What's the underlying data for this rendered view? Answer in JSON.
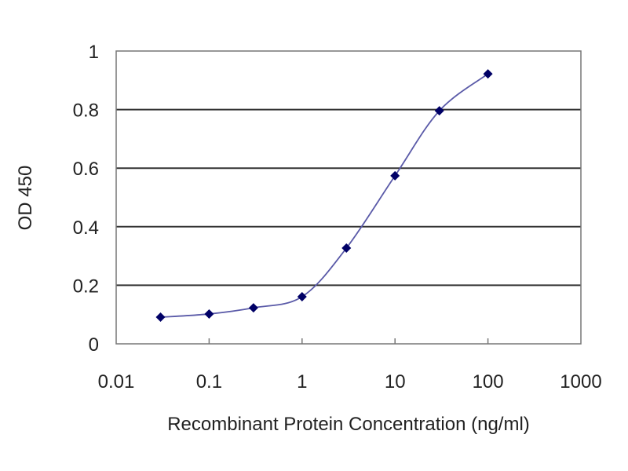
{
  "chart_data": {
    "type": "line",
    "title": "",
    "xlabel": "Recombinant Protein Concentration (ng/ml)",
    "ylabel": "OD 450",
    "x_scale": "log",
    "xlim": [
      0.01,
      1000
    ],
    "ylim": [
      0,
      1
    ],
    "x_ticks": [
      "0.01",
      "0.1",
      "1",
      "10",
      "100",
      "1000"
    ],
    "y_ticks": [
      "0",
      "0.2",
      "0.4",
      "0.6",
      "0.8",
      "1"
    ],
    "grid": "horizontal",
    "series": [
      {
        "x": [
          0.03,
          0.1,
          0.3,
          1,
          3,
          10,
          30,
          100
        ],
        "y": [
          0.091,
          0.102,
          0.123,
          0.161,
          0.327,
          0.574,
          0.796,
          0.922
        ],
        "color": "#000066",
        "line_color": "#5a5aa8",
        "marker": "diamond"
      }
    ]
  }
}
